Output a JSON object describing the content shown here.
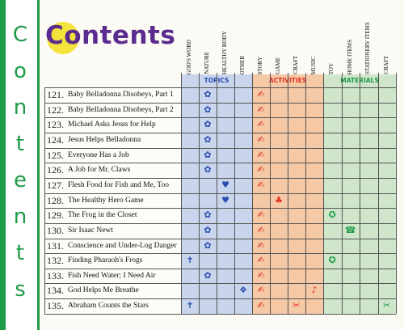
{
  "sidebar": {
    "letters": [
      "C",
      "o",
      "n",
      "t",
      "e",
      "n",
      "t",
      "s"
    ]
  },
  "header": {
    "title": "Contents"
  },
  "groups": [
    {
      "label": "TOPICS",
      "columns": [
        "GOD'S WORD",
        "NATURE",
        "HEALTHY BODY",
        "OTHER"
      ]
    },
    {
      "label": "ACTIVITIES",
      "columns": [
        "STORY",
        "GAME",
        "CRAFT",
        "MUSIC"
      ]
    },
    {
      "label": "MATERIALS",
      "columns": [
        "TOY",
        "HOME ITEMS",
        "STATIONERY ITEMS",
        "CRAFT"
      ]
    }
  ],
  "rows": [
    {
      "number": "121.",
      "title": "Baby Belladonna Disobeys, Part 1",
      "marks": [
        1,
        4
      ]
    },
    {
      "number": "122.",
      "title": "Baby Belladonna Disobeys, Part 2",
      "marks": [
        1,
        4
      ]
    },
    {
      "number": "123.",
      "title": "Michael Asks Jesus for Help",
      "marks": [
        1,
        4
      ]
    },
    {
      "number": "124.",
      "title": "Jesus Helps Belladonna",
      "marks": [
        1,
        4
      ]
    },
    {
      "number": "125.",
      "title": "Everyone Has a Job",
      "marks": [
        1,
        4
      ]
    },
    {
      "number": "126.",
      "title": "A Job for Mr. Claws",
      "marks": [
        1,
        4
      ]
    },
    {
      "number": "127.",
      "title": "Flesh Food for Fish and Me, Too",
      "marks": [
        2,
        4
      ]
    },
    {
      "number": "128.",
      "title": "The Healthy Hero Game",
      "marks": [
        2,
        5
      ]
    },
    {
      "number": "129.",
      "title": "The Frog in the Closet",
      "marks": [
        1,
        4,
        8
      ]
    },
    {
      "number": "130.",
      "title": "Sir Isaac Newt",
      "marks": [
        1,
        4,
        9
      ]
    },
    {
      "number": "131.",
      "title": "Conscience and Under-Log Danger",
      "marks": [
        1,
        4
      ]
    },
    {
      "number": "132.",
      "title": "Finding Pharaoh's Frogs",
      "marks": [
        0,
        4,
        8
      ]
    },
    {
      "number": "133.",
      "title": "Fish Need Water; I Need Air",
      "marks": [
        1,
        4
      ]
    },
    {
      "number": "134.",
      "title": "God Helps Me Breathe",
      "marks": [
        3,
        4,
        7
      ]
    },
    {
      "number": "135.",
      "title": "Abraham Counts the Stars",
      "marks": [
        0,
        4,
        6,
        11
      ]
    }
  ]
}
